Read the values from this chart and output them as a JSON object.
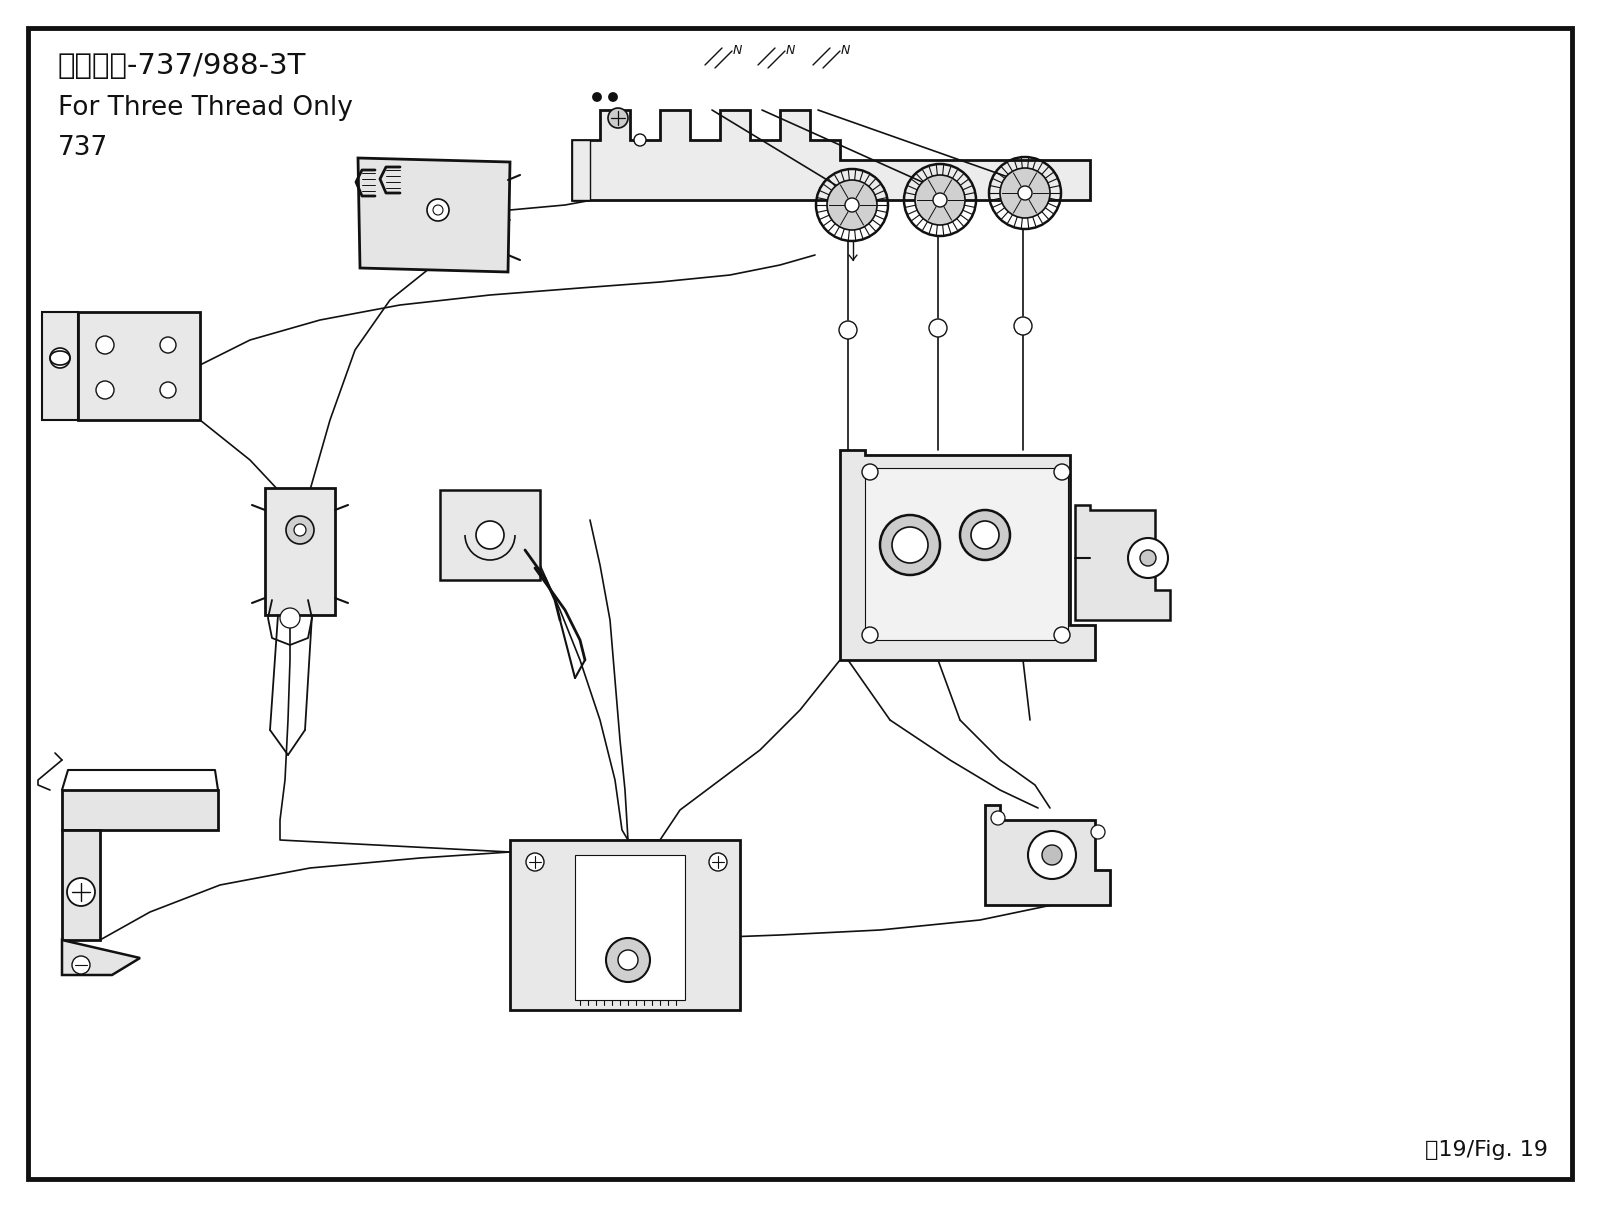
{
  "title_line1": "只有三線-737/988-3T",
  "title_line2": "For Three Thread Only",
  "title_line3": "737",
  "fig_label": "圖19/Fig. 19",
  "bg_color": "#ffffff",
  "border_color": "#111111",
  "line_color": "#111111",
  "lw": 1.3,
  "figsize": [
    16.0,
    12.07
  ],
  "dpi": 100
}
